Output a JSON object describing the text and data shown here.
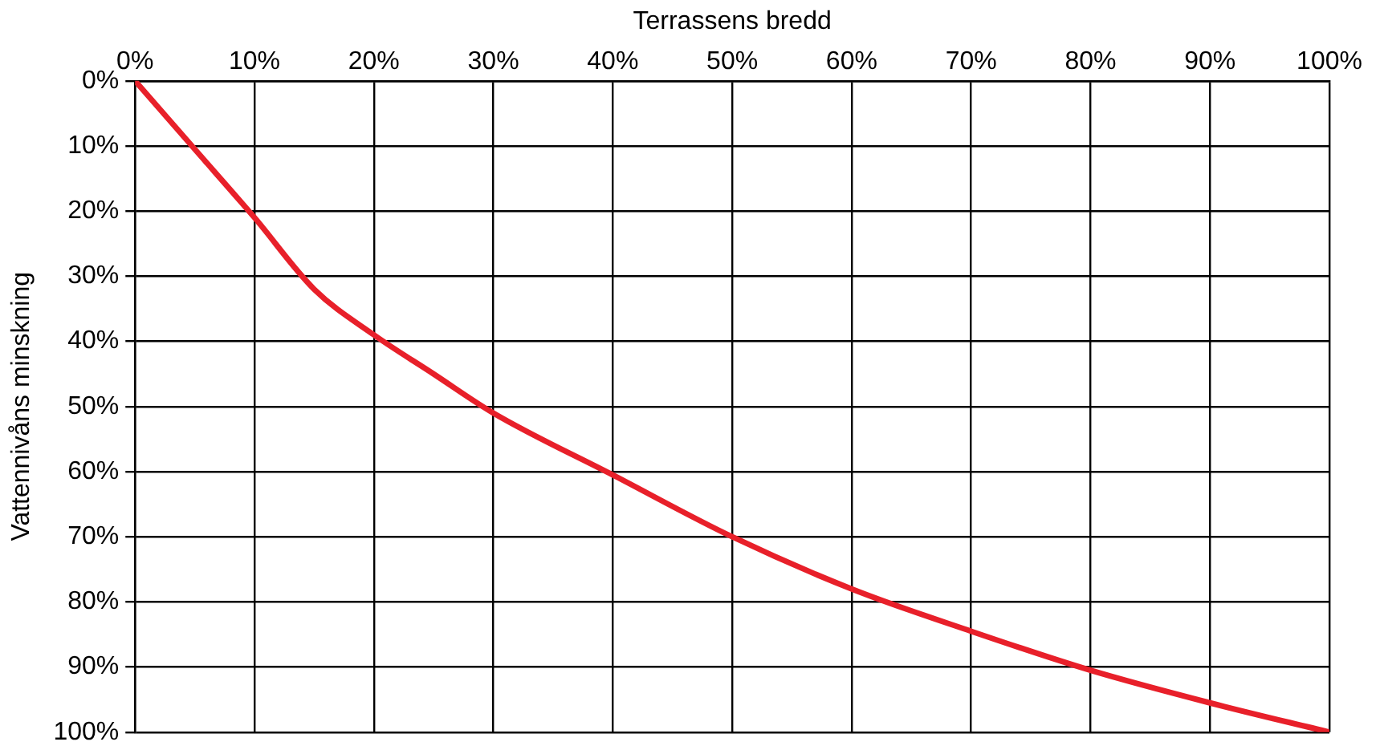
{
  "chart_data": {
    "type": "line",
    "xlabel": "Terrassens bredd",
    "ylabel": "Vattennivåns minskning",
    "x": [
      0,
      5,
      10,
      15,
      20,
      25,
      30,
      40,
      50,
      60,
      70,
      80,
      90,
      100
    ],
    "series": [
      {
        "color": "#e8202a",
        "values": [
          0,
          10.5,
          21,
          32,
          39,
          45,
          51,
          60.5,
          70,
          78,
          84.5,
          90.5,
          95.5,
          100
        ]
      }
    ],
    "xlim": [
      0,
      100
    ],
    "ylim": [
      100,
      0
    ],
    "xticks": [
      {
        "value": 0,
        "label": "0%"
      },
      {
        "value": 10,
        "label": "10%"
      },
      {
        "value": 20,
        "label": "20%"
      },
      {
        "value": 30,
        "label": "30%"
      },
      {
        "value": 40,
        "label": "40%"
      },
      {
        "value": 50,
        "label": "50%"
      },
      {
        "value": 60,
        "label": "60%"
      },
      {
        "value": 70,
        "label": "70%"
      },
      {
        "value": 80,
        "label": "80%"
      },
      {
        "value": 90,
        "label": "90%"
      },
      {
        "value": 100,
        "label": "100%"
      }
    ],
    "yticks": [
      {
        "value": 0,
        "label": "0%"
      },
      {
        "value": 10,
        "label": "10%"
      },
      {
        "value": 20,
        "label": "20%"
      },
      {
        "value": 30,
        "label": "30%"
      },
      {
        "value": 40,
        "label": "40%"
      },
      {
        "value": 50,
        "label": "50%"
      },
      {
        "value": 60,
        "label": "60%"
      },
      {
        "value": 70,
        "label": "70%"
      },
      {
        "value": 80,
        "label": "80%"
      },
      {
        "value": 90,
        "label": "90%"
      },
      {
        "value": 100,
        "label": "100%"
      }
    ],
    "grid": true,
    "legend": false,
    "marker": "none",
    "line_style": "solid"
  }
}
